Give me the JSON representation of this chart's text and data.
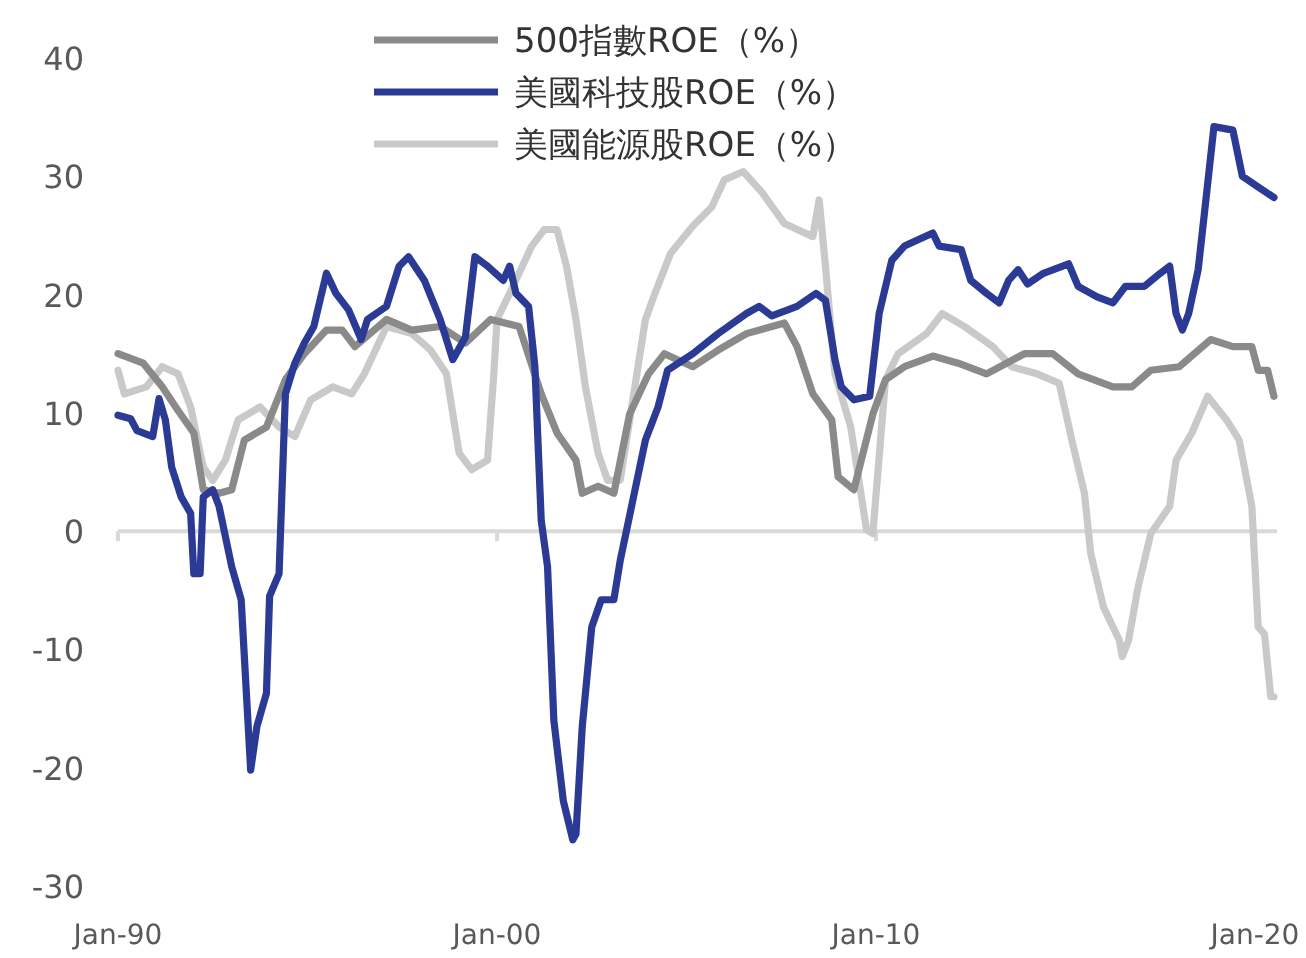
{
  "chart_data": {
    "type": "line",
    "legend": "top",
    "xlim": [
      "1990-01",
      "2020-08"
    ],
    "ylim": [
      -30,
      40
    ],
    "xticks": [
      {
        "value": "1990-01",
        "label": "Jan-90"
      },
      {
        "value": "2000-01",
        "label": "Jan-00"
      },
      {
        "value": "2010-01",
        "label": "Jan-10"
      },
      {
        "value": "2020-01",
        "label": "Jan-20"
      }
    ],
    "yticks": [
      -30,
      -20,
      -10,
      0,
      10,
      20,
      30,
      40
    ],
    "series": [
      {
        "name": "500指數ROE（%）",
        "color": "#8a8a8a",
        "x": [
          "1990-01",
          "1990-09",
          "1991-03",
          "1991-08",
          "1992-01",
          "1992-04",
          "1992-09",
          "1993-01",
          "1993-05",
          "1993-12",
          "1994-06",
          "1994-12",
          "1995-07",
          "1995-12",
          "1996-04",
          "1997-02",
          "1997-10",
          "1998-07",
          "1999-03",
          "1999-11",
          "2000-08",
          "2001-03",
          "2001-08",
          "2002-02",
          "2002-04",
          "2002-09",
          "2003-02",
          "2003-07",
          "2004-01",
          "2004-06",
          "2005-03",
          "2005-11",
          "2006-08",
          "2007-08",
          "2007-12",
          "2008-05",
          "2008-11",
          "2009-01",
          "2009-06",
          "2009-12",
          "2010-04",
          "2010-10",
          "2011-07",
          "2012-03",
          "2012-12",
          "2013-12",
          "2014-09",
          "2015-05",
          "2016-04",
          "2016-10",
          "2017-04",
          "2018-01",
          "2018-11",
          "2019-06",
          "2019-12",
          "2020-02",
          "2020-05",
          "2020-07"
        ],
        "values": [
          15.0,
          14.2,
          12.2,
          10.2,
          8.3,
          3.5,
          3.2,
          3.5,
          7.7,
          8.8,
          12.8,
          15.0,
          17.0,
          17.0,
          15.6,
          17.9,
          17.0,
          17.3,
          15.9,
          17.9,
          17.3,
          11.6,
          8.3,
          6.0,
          3.2,
          3.8,
          3.2,
          9.9,
          13.3,
          15.0,
          13.9,
          15.3,
          16.7,
          17.6,
          15.6,
          11.6,
          9.4,
          4.6,
          3.5,
          9.9,
          12.8,
          13.9,
          14.8,
          14.2,
          13.3,
          15.0,
          15.0,
          13.3,
          12.2,
          12.2,
          13.6,
          13.9,
          16.2,
          15.6,
          15.6,
          13.6,
          13.6,
          11.4
        ]
      },
      {
        "name": "美國科技股ROE（%）",
        "color": "#2b3a94",
        "x": [
          "1990-01",
          "1990-05",
          "1990-07",
          "1990-12",
          "1991-02",
          "1991-04",
          "1991-06",
          "1991-09",
          "1991-12",
          "1992-01",
          "1992-03",
          "1992-04",
          "1992-07",
          "1992-09",
          "1993-01",
          "1993-04",
          "1993-06",
          "1993-07",
          "1993-09",
          "1993-12",
          "1994-01",
          "1994-04",
          "1994-06",
          "1994-09",
          "1994-12",
          "1995-03",
          "1995-07",
          "1995-10",
          "1996-02",
          "1996-06",
          "1996-08",
          "1997-02",
          "1997-06",
          "1997-09",
          "1998-02",
          "1998-07",
          "1998-11",
          "1999-03",
          "1999-06",
          "1999-10",
          "2000-03",
          "2000-05",
          "2000-07",
          "2000-11",
          "2001-01",
          "2001-03",
          "2001-05",
          "2001-07",
          "2001-10",
          "2002-01",
          "2002-02",
          "2002-04",
          "2002-07",
          "2002-10",
          "2003-02",
          "2003-04",
          "2003-08",
          "2003-12",
          "2004-04",
          "2004-07",
          "2005-03",
          "2005-11",
          "2006-08",
          "2006-12",
          "2007-04",
          "2007-12",
          "2008-06",
          "2008-09",
          "2008-12",
          "2009-02",
          "2009-06",
          "2009-11",
          "2010-02",
          "2010-06",
          "2010-10",
          "2011-07",
          "2011-09",
          "2012-04",
          "2012-07",
          "2012-12",
          "2013-04",
          "2013-07",
          "2013-10",
          "2014-01",
          "2014-06",
          "2015-02",
          "2015-05",
          "2015-11",
          "2016-04",
          "2016-08",
          "2017-02",
          "2017-07",
          "2017-10",
          "2017-12",
          "2018-02",
          "2018-04",
          "2018-07",
          "2018-09",
          "2018-12",
          "2019-06",
          "2019-09",
          "2020-02",
          "2020-07"
        ],
        "values": [
          9.8,
          9.5,
          8.5,
          8.0,
          11.2,
          9.4,
          5.4,
          2.9,
          1.5,
          -3.6,
          -3.6,
          2.9,
          3.5,
          2.1,
          -3.0,
          -5.8,
          -15.4,
          -20.2,
          -16.5,
          -13.7,
          -5.5,
          -3.6,
          11.6,
          14.2,
          15.9,
          17.3,
          21.8,
          20.1,
          18.7,
          16.2,
          17.9,
          19.0,
          22.4,
          23.2,
          21.2,
          17.9,
          14.5,
          16.4,
          23.2,
          22.4,
          21.2,
          22.4,
          20.1,
          19.0,
          13.9,
          0.9,
          -3.0,
          -16.0,
          -22.8,
          -26.1,
          -25.6,
          -16.5,
          -8.1,
          -5.8,
          -5.8,
          -2.5,
          2.6,
          7.7,
          10.5,
          13.6,
          15.0,
          16.7,
          18.4,
          19.0,
          18.2,
          19.0,
          20.1,
          19.5,
          14.5,
          12.2,
          11.1,
          11.4,
          18.4,
          22.9,
          24.1,
          25.2,
          24.1,
          23.8,
          21.2,
          20.1,
          19.3,
          21.2,
          22.1,
          20.9,
          21.8,
          22.6,
          20.7,
          19.8,
          19.3,
          20.7,
          20.7,
          21.8,
          22.4,
          18.4,
          17.0,
          18.4,
          22.1,
          26.9,
          34.2,
          33.9,
          30.0,
          29.1,
          28.2
        ]
      },
      {
        "name": "美國能源股ROE（%）",
        "color": "#c9c9c9",
        "x": [
          "1990-01",
          "1990-03",
          "1990-10",
          "1991-03",
          "1991-08",
          "1991-12",
          "1992-04",
          "1992-07",
          "1992-11",
          "1993-03",
          "1993-10",
          "1994-04",
          "1994-09",
          "1995-02",
          "1995-09",
          "1996-03",
          "1996-07",
          "1997-02",
          "1997-10",
          "1998-04",
          "1998-09",
          "1999-01",
          "1999-05",
          "1999-10",
          "1999-12",
          "2000-01",
          "2000-05",
          "2000-12",
          "2001-04",
          "2001-08",
          "2001-11",
          "2002-02",
          "2002-05",
          "2002-09",
          "2002-12",
          "2003-04",
          "2003-08",
          "2003-12",
          "2004-03",
          "2004-08",
          "2005-03",
          "2005-09",
          "2006-01",
          "2006-07",
          "2007-01",
          "2007-08",
          "2008-05",
          "2008-07",
          "2008-09",
          "2008-12",
          "2009-05",
          "2009-10",
          "2009-12",
          "2010-04",
          "2010-08",
          "2011-05",
          "2011-10",
          "2012-05",
          "2013-02",
          "2013-08",
          "2014-04",
          "2014-11",
          "2015-03",
          "2015-07",
          "2015-09",
          "2016-01",
          "2016-06",
          "2016-07",
          "2016-09",
          "2016-12",
          "2017-04",
          "2017-10",
          "2017-12",
          "2018-05",
          "2018-10",
          "2019-04",
          "2019-08",
          "2019-12",
          "2020-02",
          "2020-04",
          "2020-06",
          "2020-07"
        ],
        "values": [
          13.6,
          11.6,
          12.2,
          13.9,
          13.3,
          10.5,
          5.4,
          4.3,
          6.0,
          9.4,
          10.5,
          8.8,
          8.0,
          11.1,
          12.2,
          11.6,
          13.3,
          17.3,
          16.7,
          15.3,
          13.3,
          6.6,
          5.2,
          6.0,
          13.3,
          17.9,
          20.1,
          24.1,
          25.5,
          25.5,
          22.4,
          17.9,
          12.2,
          6.6,
          4.3,
          4.3,
          11.1,
          17.9,
          20.1,
          23.5,
          25.8,
          27.4,
          29.7,
          30.4,
          28.6,
          26.0,
          24.9,
          28.0,
          22.4,
          13.3,
          8.8,
          0.1,
          -0.2,
          12.8,
          15.0,
          16.7,
          18.4,
          17.3,
          15.6,
          13.9,
          13.3,
          12.5,
          7.7,
          3.2,
          -1.9,
          -6.4,
          -9.2,
          -10.6,
          -9.2,
          -4.7,
          -0.2,
          2.1,
          6.0,
          8.3,
          11.4,
          9.4,
          7.7,
          2.1,
          -8.1,
          -8.7,
          -14.0,
          -14.0
        ]
      }
    ]
  }
}
